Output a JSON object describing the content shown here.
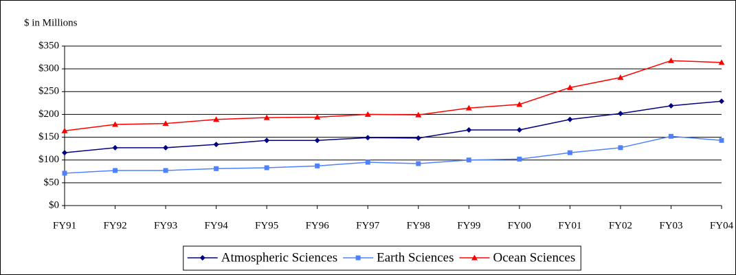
{
  "chart_data": {
    "type": "line",
    "y_label": "$ in Millions",
    "categories": [
      "FY91",
      "FY92",
      "FY93",
      "FY94",
      "FY95",
      "FY96",
      "FY97",
      "FY98",
      "FY99",
      "FY00",
      "FY01",
      "FY02",
      "FY03",
      "FY04"
    ],
    "series": [
      {
        "name": "Atmospheric Sciences",
        "color": "#000080",
        "marker": "diamond",
        "values": [
          116,
          127,
          127,
          134,
          143,
          143,
          149,
          148,
          166,
          166,
          189,
          202,
          219,
          229
        ]
      },
      {
        "name": "Earth Sciences",
        "color": "#4f81ff",
        "marker": "square",
        "values": [
          71,
          77,
          77,
          81,
          83,
          87,
          95,
          92,
          100,
          102,
          116,
          127,
          152,
          143
        ]
      },
      {
        "name": "Ocean Sciences",
        "color": "#ff0000",
        "marker": "triangle",
        "values": [
          164,
          178,
          180,
          189,
          193,
          194,
          200,
          199,
          214,
          222,
          259,
          281,
          318,
          314
        ]
      }
    ],
    "ylim": [
      0,
      350
    ],
    "yticks": [
      {
        "value": 0,
        "label": "$0"
      },
      {
        "value": 50,
        "label": "$50"
      },
      {
        "value": 100,
        "label": "$100"
      },
      {
        "value": 150,
        "label": "$150"
      },
      {
        "value": 200,
        "label": "$200"
      },
      {
        "value": 250,
        "label": "$250"
      },
      {
        "value": 300,
        "label": "$300"
      },
      {
        "value": 350,
        "label": "$350"
      }
    ],
    "grid": true,
    "legend": "bottom"
  }
}
